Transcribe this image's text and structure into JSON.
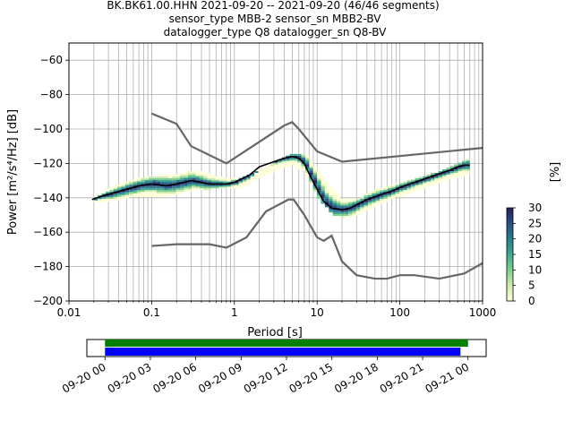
{
  "title": {
    "line1": "BK.BK61.00.HHN   2021-09-20 -- 2021-09-20  (46/46 segments)",
    "line2": "sensor_type MBB-2 sensor_sn MBB2-BV",
    "line3": "datalogger_type Q8 datalogger_sn Q8-BV"
  },
  "colors": {
    "axis": "#000000",
    "grid": "#b0b0b0",
    "noise_model": "#666666",
    "mean": "#000000",
    "coverage_data": "#008000",
    "coverage_available": "#0000ff",
    "colormap": [
      "#fefed8",
      "#d0ecb0",
      "#7fcf8f",
      "#3fa98f",
      "#2a7d8c",
      "#2b4f86",
      "#2a2060"
    ]
  },
  "chart_data": [
    {
      "type": "heatmap",
      "subtype": "probabilistic-power-spectral-density",
      "xlabel": "Period [s]",
      "ylabel": "Power [m²/s⁴/Hz] [dB]",
      "xscale": "log",
      "xlim": [
        0.01,
        1000
      ],
      "ylim": [
        -200,
        -50
      ],
      "xticks": [
        {
          "value": 0.01,
          "label": "0.01"
        },
        {
          "value": 0.1,
          "label": "0.1"
        },
        {
          "value": 1,
          "label": "1"
        },
        {
          "value": 10,
          "label": "10"
        },
        {
          "value": 100,
          "label": "100"
        },
        {
          "value": 1000,
          "label": "1000"
        }
      ],
      "yticks": [
        {
          "value": -60,
          "label": "−60"
        },
        {
          "value": -80,
          "label": "−80"
        },
        {
          "value": -100,
          "label": "−100"
        },
        {
          "value": -120,
          "label": "−120"
        },
        {
          "value": -140,
          "label": "−140"
        },
        {
          "value": -160,
          "label": "−160"
        },
        {
          "value": -180,
          "label": "−180"
        },
        {
          "value": -200,
          "label": "−200"
        }
      ],
      "grid": true,
      "colorbar": {
        "label": "[%]",
        "range": [
          0,
          30
        ],
        "ticks": [
          {
            "value": 0,
            "label": "0"
          },
          {
            "value": 5,
            "label": "5"
          },
          {
            "value": 10,
            "label": "10"
          },
          {
            "value": 15,
            "label": "15"
          },
          {
            "value": 20,
            "label": "20"
          },
          {
            "value": 25,
            "label": "25"
          },
          {
            "value": 30,
            "label": "30"
          }
        ]
      },
      "mean_curve": {
        "periods": [
          0.019,
          0.025,
          0.03,
          0.05,
          0.07,
          0.1,
          0.15,
          0.2,
          0.3,
          0.5,
          0.8,
          1.0,
          1.5,
          2,
          3,
          4,
          5,
          6,
          7,
          8,
          10,
          12,
          15,
          20,
          25,
          30,
          40,
          60,
          80,
          100,
          150,
          200,
          300,
          400,
          500,
          600,
          700
        ],
        "power": [
          -141,
          -139,
          -138,
          -135,
          -133,
          -132,
          -133,
          -132,
          -130,
          -132,
          -132,
          -131,
          -127,
          -122,
          -119,
          -117,
          -116,
          -117,
          -120,
          -126,
          -135,
          -142,
          -146,
          -147,
          -146,
          -144,
          -141,
          -138,
          -136,
          -134,
          -131,
          -129,
          -126,
          -124,
          -122,
          -121,
          -121
        ]
      },
      "noise_models": [
        {
          "periods": [
            0.1,
            0.2,
            0.3,
            0.8,
            4,
            5,
            6,
            10,
            20,
            1000
          ],
          "power": [
            -91,
            -97,
            -110,
            -120,
            -98,
            -96,
            -100,
            -113,
            -119,
            -111
          ]
        },
        {
          "periods": [
            0.1,
            0.2,
            0.5,
            0.8,
            1.4,
            2.4,
            4.5,
            5.2,
            7,
            10,
            12,
            15,
            20,
            30,
            50,
            70,
            100,
            150,
            300,
            600,
            1000
          ],
          "power": [
            -168,
            -167,
            -167,
            -169,
            -163,
            -148,
            -141,
            -141,
            -150,
            -163,
            -165,
            -162,
            -177,
            -185,
            -187,
            -187,
            -185,
            -185,
            -187,
            -184,
            -178
          ]
        }
      ],
      "density_band": {
        "periods": [
          0.02,
          0.03,
          0.05,
          0.08,
          0.12,
          0.2,
          0.3,
          0.5,
          0.8,
          1.2,
          2,
          3,
          5,
          7,
          10,
          15,
          20,
          30,
          50,
          100,
          200,
          400,
          700
        ],
        "low": [
          -142,
          -141,
          -139,
          -138,
          -139,
          -137,
          -135,
          -134,
          -134,
          -133,
          -127,
          -123,
          -120,
          -125,
          -140,
          -149,
          -151,
          -149,
          -143,
          -138,
          -133,
          -128,
          -125
        ],
        "high": [
          -140,
          -135,
          -131,
          -129,
          -128,
          -127,
          -125,
          -127,
          -130,
          -129,
          -124,
          -120,
          -115,
          -116,
          -126,
          -136,
          -142,
          -141,
          -136,
          -132,
          -128,
          -123,
          -117
        ]
      }
    },
    {
      "type": "timeline",
      "subtype": "data-coverage",
      "xticks": [
        {
          "value": 0,
          "label": "09-20 00"
        },
        {
          "value": 3,
          "label": "09-20 03"
        },
        {
          "value": 6,
          "label": "09-20 06"
        },
        {
          "value": 9,
          "label": "09-20 09"
        },
        {
          "value": 12,
          "label": "09-20 12"
        },
        {
          "value": 15,
          "label": "09-20 15"
        },
        {
          "value": 18,
          "label": "09-20 18"
        },
        {
          "value": 21,
          "label": "09-20 21"
        },
        {
          "value": 24,
          "label": "09-21 00"
        }
      ],
      "xlim_hours": [
        -1.2,
        25.2
      ],
      "data_span_hours": [
        0,
        24.0
      ],
      "segments_span_hours": [
        0,
        23.5
      ]
    }
  ]
}
